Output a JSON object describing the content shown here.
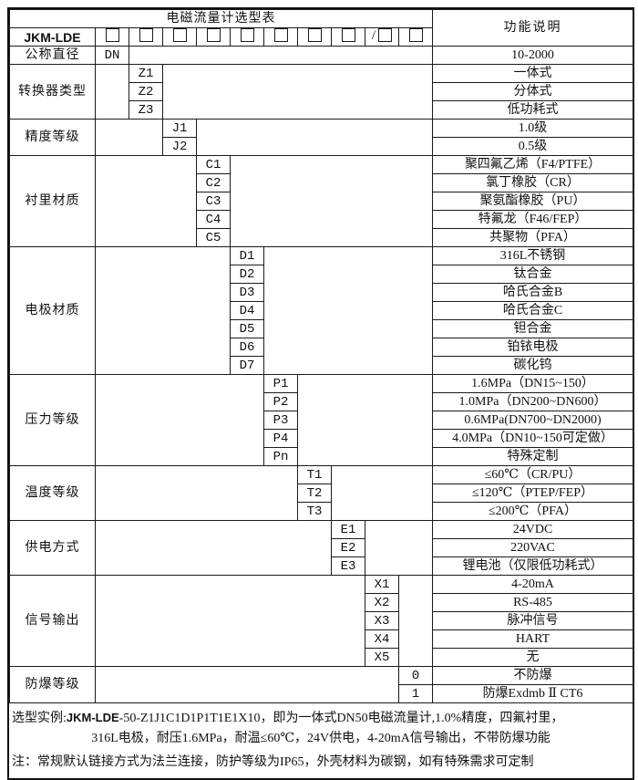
{
  "table": {
    "title": "电磁流量计选型表",
    "right_header": "功能说明",
    "model_prefix": "JKM-LDE",
    "model_boxes": [
      {
        "slash": false
      },
      {
        "slash": false
      },
      {
        "slash": false
      },
      {
        "slash": false
      },
      {
        "slash": false
      },
      {
        "slash": false
      },
      {
        "slash": false
      },
      {
        "slash": false
      },
      {
        "slash": true
      },
      {
        "slash": false
      }
    ],
    "blocks": [
      {
        "label": "公称直径",
        "col": 1,
        "rows": [
          {
            "code": "DN",
            "desc": "10-2000"
          }
        ]
      },
      {
        "label": "转换器类型",
        "col": 2,
        "rows": [
          {
            "code": "Z1",
            "desc": "一体式"
          },
          {
            "code": "Z2",
            "desc": "分体式"
          },
          {
            "code": "Z3",
            "desc": "低功耗式"
          }
        ]
      },
      {
        "label": "精度等级",
        "col": 3,
        "rows": [
          {
            "code": "J1",
            "desc": "1.0级"
          },
          {
            "code": "J2",
            "desc": "0.5级"
          }
        ]
      },
      {
        "label": "衬里材质",
        "col": 4,
        "rows": [
          {
            "code": "C1",
            "desc": "聚四氟乙烯（F4/PTFE）"
          },
          {
            "code": "C2",
            "desc": "氯丁橡胶（CR）"
          },
          {
            "code": "C3",
            "desc": "聚氨酯橡胶（PU）"
          },
          {
            "code": "C4",
            "desc": "特氟龙（F46/FEP）"
          },
          {
            "code": "C5",
            "desc": "共聚物（PFA）"
          }
        ]
      },
      {
        "label": "电极材质",
        "col": 5,
        "rows": [
          {
            "code": "D1",
            "desc": "316L不锈钢"
          },
          {
            "code": "D2",
            "desc": "钛合金"
          },
          {
            "code": "D3",
            "desc": "哈氏合金B"
          },
          {
            "code": "D4",
            "desc": "哈氏合金C"
          },
          {
            "code": "D5",
            "desc": "钽合金"
          },
          {
            "code": "D6",
            "desc": "铂铱电极"
          },
          {
            "code": "D7",
            "desc": "碳化钨"
          }
        ]
      },
      {
        "label": "压力等级",
        "col": 6,
        "rows": [
          {
            "code": "P1",
            "desc": "1.6MPa（DN15~150）"
          },
          {
            "code": "P2",
            "desc": "1.0MPa（DN200~DN600）"
          },
          {
            "code": "P3",
            "desc": "0.6MPa(DN700~DN2000)"
          },
          {
            "code": "P4",
            "desc": "4.0MPa（DN10~150可定做）"
          },
          {
            "code": "Pn",
            "desc": "特殊定制"
          }
        ]
      },
      {
        "label": "温度等级",
        "col": 7,
        "rows": [
          {
            "code": "T1",
            "desc": "≤60℃（CR/PU）"
          },
          {
            "code": "T2",
            "desc": "≤120℃（PTEP/FEP）"
          },
          {
            "code": "T3",
            "desc": "≤200℃（PFA）"
          }
        ]
      },
      {
        "label": "供电方式",
        "col": 8,
        "rows": [
          {
            "code": "E1",
            "desc": "24VDC"
          },
          {
            "code": "E2",
            "desc": "220VAC"
          },
          {
            "code": "E3",
            "desc": "锂电池（仅限低功耗式）"
          }
        ]
      },
      {
        "label": "信号输出",
        "col": 9,
        "rows": [
          {
            "code": "X1",
            "desc": "4-20mA"
          },
          {
            "code": "X2",
            "desc": "RS-485"
          },
          {
            "code": "X3",
            "desc": "脉冲信号"
          },
          {
            "code": "X4",
            "desc": "HART"
          },
          {
            "code": "X5",
            "desc": "无"
          }
        ]
      },
      {
        "label": "防爆等级",
        "col": 10,
        "rows": [
          {
            "code": "0",
            "desc": "不防爆"
          },
          {
            "code": "1",
            "desc": "防爆Exdmb Ⅱ CT6"
          }
        ]
      }
    ]
  },
  "notes": {
    "example_prefix": "选型实例:",
    "example_model": "JKM-LDE",
    "example_rest": "-50-Z1J1C1D1P1T1E1X10，即为一体式DN50电磁流量计,1.0%精度，四氟衬里，",
    "example_line2": "316L电极，耐压1.6MPa，耐温≤60℃，24V供电，4-20mA信号输出，不带防爆功能",
    "note_line": "注：常规默认链接方式为法兰连接，防护等级为IP65，外壳材料为碳钢，如有特殊需求可定制"
  }
}
